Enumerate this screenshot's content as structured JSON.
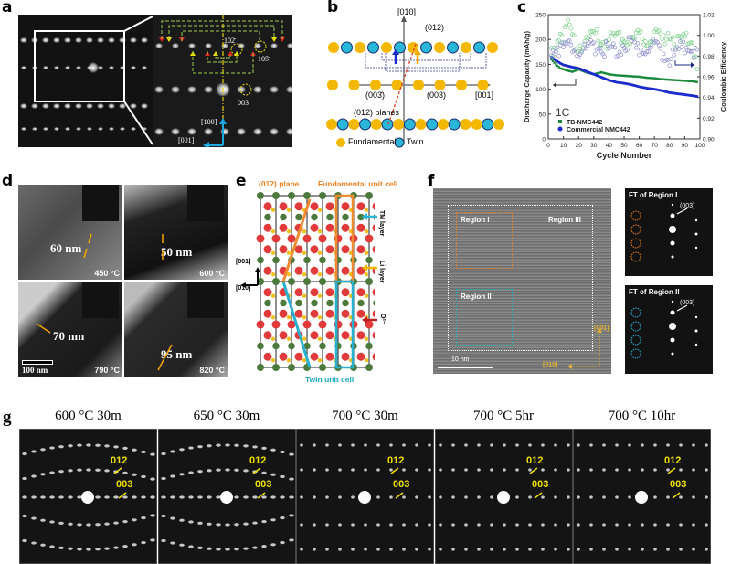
{
  "panels": {
    "a": {
      "label": "a",
      "annotations": [
        "102̄",
        "105̄",
        "003̄",
        "[100]",
        "[001]"
      ]
    },
    "b": {
      "label": "b",
      "axis_vertical": "[010]",
      "axis_horizontal": "[001]",
      "plane_label": "(012)",
      "planes_label": "(012) planes",
      "reflection_neg": "(003̄)",
      "reflection_pos": "(003)",
      "legend": [
        {
          "name": "Fundamental",
          "color": "#f5b800"
        },
        {
          "name": "Twin",
          "color": "#29b6d8"
        }
      ]
    },
    "c": {
      "label": "c"
    },
    "d": {
      "label": "d",
      "tiles": [
        {
          "size": "60 nm",
          "temp": "450 °C"
        },
        {
          "size": "50 nm",
          "temp": "600 °C"
        },
        {
          "size": "70 nm",
          "temp": "790 °C"
        },
        {
          "size": "95 nm",
          "temp": "820 °C"
        }
      ],
      "scale_bar": "100 nm"
    },
    "e": {
      "label": "e",
      "plane_label": "(012) plane",
      "fundamental_cell": "Fundamental unit cell",
      "twin_cell": "Twin unit cell",
      "axis_up": "[001]",
      "axis_left": "[010]",
      "side_labels": [
        "TM layer",
        "Li layer",
        "O²⁻"
      ]
    },
    "f": {
      "label": "f",
      "regions": [
        "Region I",
        "Region II",
        "Region III"
      ],
      "scale_bar": "10 nm",
      "axis_up": "[001]",
      "axis_left": "[010]",
      "ft1_title": "FT of Region I",
      "ft2_title": "FT of Region II",
      "ft_peak": "(003)"
    },
    "g": {
      "label": "g",
      "patterns": [
        {
          "title": "600 °C 30m",
          "l1": "012",
          "l2": "003"
        },
        {
          "title": "650 °C 30m",
          "l1": "012",
          "l2": "003"
        },
        {
          "title": "700 °C 30m",
          "l1": "012",
          "l2": "003"
        },
        {
          "title": "700 °C 5hr",
          "l1": "012",
          "l2": "003"
        },
        {
          "title": "700 °C 10hr",
          "l1": "012",
          "l2": "003"
        }
      ]
    }
  },
  "chart_data": {
    "type": "scatter",
    "title": "",
    "annotation": "1C",
    "xlabel": "Cycle Number",
    "ylabel": "Discharge Capacity (mAh/g)",
    "y2label": "Coulombic Efficiency",
    "xlim": [
      0,
      100
    ],
    "ylim": [
      0,
      250
    ],
    "y2lim": [
      0.9,
      1.02
    ],
    "xticks": [
      "0",
      "10",
      "20",
      "30",
      "40",
      "50",
      "60",
      "70",
      "80",
      "90",
      "100"
    ],
    "yticks": [
      "0",
      "50",
      "100",
      "150",
      "200",
      "250"
    ],
    "y2ticks": [
      "0.90",
      "0.92",
      "0.94",
      "0.96",
      "0.98",
      "1.00",
      "1.02"
    ],
    "legend_position": "bottom-left",
    "series": [
      {
        "name": "TB-NMC442",
        "axis": "left",
        "color": "#1a8a3c",
        "x": [
          2,
          5,
          8,
          10,
          13,
          16,
          20,
          25,
          30,
          35,
          40,
          45,
          50,
          55,
          60,
          65,
          70,
          75,
          80,
          85,
          90,
          95,
          99
        ],
        "values": [
          160,
          150,
          142,
          140,
          137,
          135,
          140,
          134,
          130,
          134,
          130,
          128,
          127,
          126,
          125,
          123,
          122,
          120,
          119,
          118,
          117,
          116,
          114
        ]
      },
      {
        "name": "Commercial NMC442",
        "axis": "left",
        "color": "#1a2acc",
        "x": [
          2,
          5,
          8,
          10,
          15,
          20,
          25,
          30,
          35,
          40,
          45,
          50,
          55,
          60,
          65,
          70,
          75,
          80,
          85,
          90,
          95,
          99
        ],
        "values": [
          165,
          158,
          152,
          149,
          145,
          142,
          136,
          130,
          124,
          118,
          114,
          112,
          109,
          105,
          102,
          100,
          97,
          93,
          91,
          89,
          87,
          85
        ]
      },
      {
        "name": "TB-NMC442 CE",
        "axis": "right",
        "color": "#7ccf8a",
        "x": [
          2,
          5,
          8,
          10,
          13,
          16,
          20,
          25,
          30,
          35,
          40,
          45,
          50,
          55,
          60,
          65,
          70,
          75,
          80,
          85,
          90,
          95,
          99
        ],
        "values": [
          0.986,
          0.992,
          1.004,
          0.998,
          1.01,
          0.994,
          0.99,
          0.996,
          1.002,
          0.996,
          0.994,
          0.998,
          1.0,
          0.996,
          0.998,
          0.994,
          0.998,
          0.996,
          1.004,
          0.992,
          0.996,
          0.994,
          0.966
        ]
      },
      {
        "name": "Commercial NMC442 CE",
        "axis": "right",
        "color": "#8f8fd0",
        "x": [
          2,
          5,
          8,
          10,
          13,
          16,
          20,
          25,
          30,
          35,
          40,
          45,
          50,
          55,
          60,
          65,
          70,
          75,
          80,
          85,
          90,
          95,
          99
        ],
        "values": [
          0.988,
          0.99,
          0.986,
          0.988,
          0.99,
          0.988,
          0.986,
          0.984,
          0.99,
          0.988,
          0.986,
          0.984,
          0.992,
          0.99,
          0.986,
          0.988,
          0.99,
          0.984,
          0.976,
          0.984,
          0.99,
          0.986,
          0.984
        ]
      }
    ]
  }
}
